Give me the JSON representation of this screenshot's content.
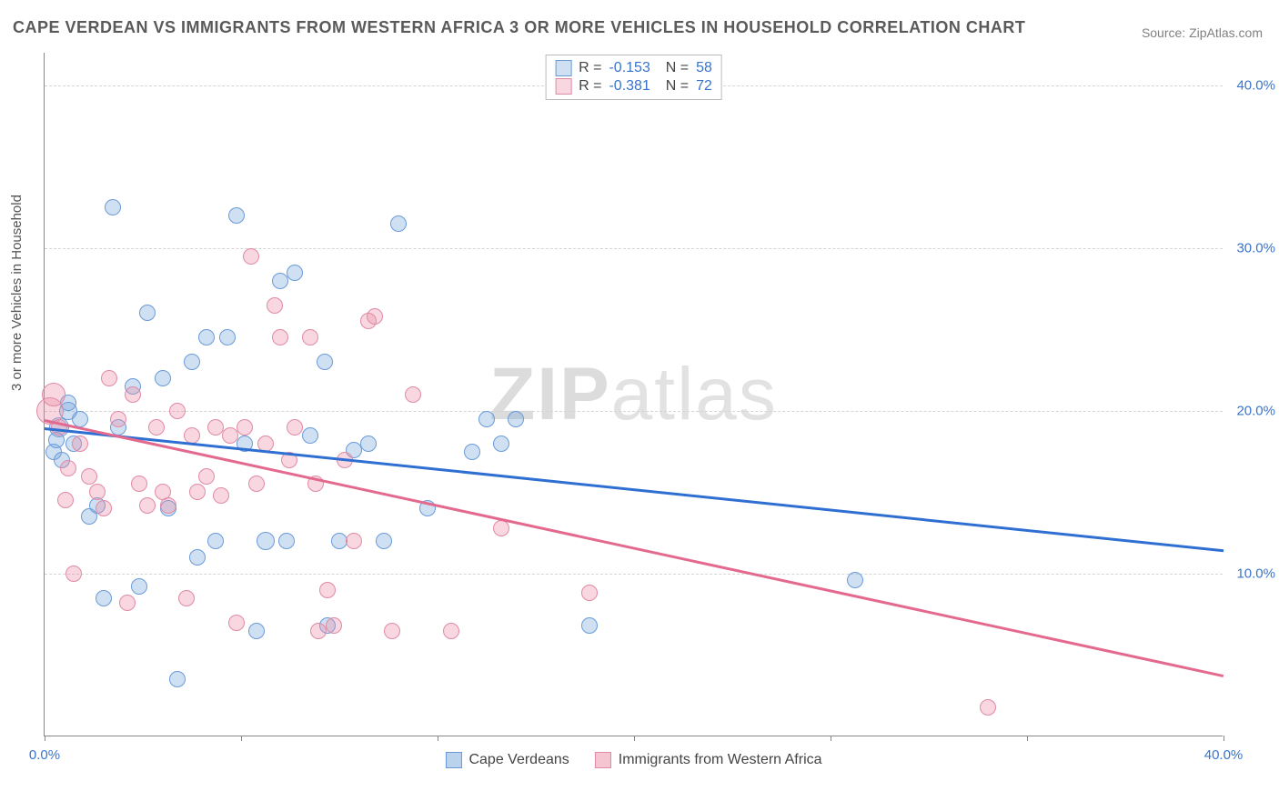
{
  "title": "CAPE VERDEAN VS IMMIGRANTS FROM WESTERN AFRICA 3 OR MORE VEHICLES IN HOUSEHOLD CORRELATION CHART",
  "source": "Source: ZipAtlas.com",
  "watermark": "ZIPatlas",
  "chart": {
    "type": "scatter",
    "ylabel": "3 or more Vehicles in Household",
    "xlim": [
      0,
      40
    ],
    "ylim": [
      0,
      42
    ],
    "ytick_vals": [
      10,
      20,
      30,
      40
    ],
    "ytick_labels": [
      "10.0%",
      "20.0%",
      "30.0%",
      "40.0%"
    ],
    "xtick_vals": [
      0,
      6.67,
      13.33,
      20,
      26.67,
      33.33,
      40
    ],
    "xtick_labels": {
      "first": "0.0%",
      "last": "40.0%"
    },
    "background_color": "#ffffff",
    "grid_color": "#d5d5d5",
    "axis_color": "#888888",
    "tick_label_color": "#3874cb",
    "series": [
      {
        "name": "Cape Verdeans",
        "fill": "rgba(120,165,220,0.35)",
        "stroke": "#6a9bd8",
        "trend_color": "#2e6fd1",
        "R": "-0.153",
        "N": "58",
        "trend": {
          "x1": 0,
          "y1": 19.0,
          "x2": 40,
          "y2": 11.5
        },
        "points": [
          [
            0.3,
            17.5,
            9
          ],
          [
            0.4,
            18.2,
            9
          ],
          [
            0.5,
            19.0,
            11
          ],
          [
            0.6,
            17.0,
            9
          ],
          [
            0.8,
            20.0,
            10
          ],
          [
            0.8,
            20.5,
            9
          ],
          [
            1.0,
            18.0,
            9
          ],
          [
            1.2,
            19.5,
            9
          ],
          [
            1.5,
            13.5,
            9
          ],
          [
            1.8,
            14.2,
            9
          ],
          [
            2.0,
            8.5,
            9
          ],
          [
            2.3,
            32.5,
            9
          ],
          [
            2.5,
            19.0,
            9
          ],
          [
            3.0,
            21.5,
            9
          ],
          [
            3.2,
            9.2,
            9
          ],
          [
            3.5,
            26.0,
            9
          ],
          [
            4.0,
            22.0,
            9
          ],
          [
            4.2,
            14.0,
            9
          ],
          [
            4.5,
            3.5,
            9
          ],
          [
            5.0,
            23.0,
            9
          ],
          [
            5.2,
            11.0,
            9
          ],
          [
            5.5,
            24.5,
            9
          ],
          [
            5.8,
            12.0,
            9
          ],
          [
            6.2,
            24.5,
            9
          ],
          [
            6.5,
            32.0,
            9
          ],
          [
            6.8,
            18.0,
            9
          ],
          [
            7.2,
            6.5,
            9
          ],
          [
            7.5,
            12.0,
            10
          ],
          [
            8.0,
            28.0,
            9
          ],
          [
            8.2,
            12.0,
            9
          ],
          [
            8.5,
            28.5,
            9
          ],
          [
            9.0,
            18.5,
            9
          ],
          [
            9.5,
            23.0,
            9
          ],
          [
            9.6,
            6.8,
            9
          ],
          [
            10.0,
            12.0,
            9
          ],
          [
            10.5,
            17.6,
            9
          ],
          [
            11.0,
            18.0,
            9
          ],
          [
            11.5,
            12.0,
            9
          ],
          [
            12.0,
            31.5,
            9
          ],
          [
            13.0,
            14.0,
            9
          ],
          [
            14.5,
            17.5,
            9
          ],
          [
            15.0,
            19.5,
            9
          ],
          [
            15.5,
            18.0,
            9
          ],
          [
            16.0,
            19.5,
            9
          ],
          [
            18.5,
            6.8,
            9
          ],
          [
            27.5,
            9.6,
            9
          ]
        ]
      },
      {
        "name": "Immigrants from Western Africa",
        "fill": "rgba(235,140,165,0.35)",
        "stroke": "#e08aa5",
        "trend_color": "#e36a8e",
        "R": "-0.381",
        "N": "72",
        "trend": {
          "x1": 0,
          "y1": 19.5,
          "x2": 40,
          "y2": 3.8
        },
        "points": [
          [
            0.2,
            20.0,
            15
          ],
          [
            0.3,
            21.0,
            13
          ],
          [
            0.5,
            19.0,
            9
          ],
          [
            0.7,
            14.5,
            9
          ],
          [
            0.8,
            16.5,
            9
          ],
          [
            1.0,
            10.0,
            9
          ],
          [
            1.2,
            18.0,
            9
          ],
          [
            1.5,
            16.0,
            9
          ],
          [
            1.8,
            15.0,
            9
          ],
          [
            2.0,
            14.0,
            9
          ],
          [
            2.2,
            22.0,
            9
          ],
          [
            2.5,
            19.5,
            9
          ],
          [
            2.8,
            8.2,
            9
          ],
          [
            3.0,
            21.0,
            9
          ],
          [
            3.2,
            15.5,
            9
          ],
          [
            3.5,
            14.2,
            9
          ],
          [
            3.8,
            19.0,
            9
          ],
          [
            4.0,
            15.0,
            9
          ],
          [
            4.2,
            14.2,
            9
          ],
          [
            4.5,
            20.0,
            9
          ],
          [
            4.8,
            8.5,
            9
          ],
          [
            5.0,
            18.5,
            9
          ],
          [
            5.2,
            15.0,
            9
          ],
          [
            5.5,
            16.0,
            9
          ],
          [
            5.8,
            19.0,
            9
          ],
          [
            6.0,
            14.8,
            9
          ],
          [
            6.3,
            18.5,
            9
          ],
          [
            6.5,
            7.0,
            9
          ],
          [
            6.8,
            19.0,
            9
          ],
          [
            7.0,
            29.5,
            9
          ],
          [
            7.2,
            15.5,
            9
          ],
          [
            7.5,
            18.0,
            9
          ],
          [
            7.8,
            26.5,
            9
          ],
          [
            8.0,
            24.5,
            9
          ],
          [
            8.3,
            17.0,
            9
          ],
          [
            8.5,
            19.0,
            9
          ],
          [
            9.0,
            24.5,
            9
          ],
          [
            9.2,
            15.5,
            9
          ],
          [
            9.3,
            6.5,
            9
          ],
          [
            9.6,
            9.0,
            9
          ],
          [
            9.8,
            6.8,
            9
          ],
          [
            10.2,
            17.0,
            9
          ],
          [
            10.5,
            12.0,
            9
          ],
          [
            11.0,
            25.5,
            9
          ],
          [
            11.2,
            25.8,
            9
          ],
          [
            11.8,
            6.5,
            9
          ],
          [
            12.5,
            21.0,
            9
          ],
          [
            13.8,
            6.5,
            9
          ],
          [
            15.5,
            12.8,
            9
          ],
          [
            18.5,
            8.8,
            9
          ],
          [
            32.0,
            1.8,
            9
          ]
        ]
      }
    ],
    "legend_bottom": [
      {
        "label": "Cape Verdeans",
        "fill": "rgba(120,165,220,0.5)",
        "stroke": "#6a9bd8"
      },
      {
        "label": "Immigrants from Western Africa",
        "fill": "rgba(235,140,165,0.5)",
        "stroke": "#e08aa5"
      }
    ]
  }
}
